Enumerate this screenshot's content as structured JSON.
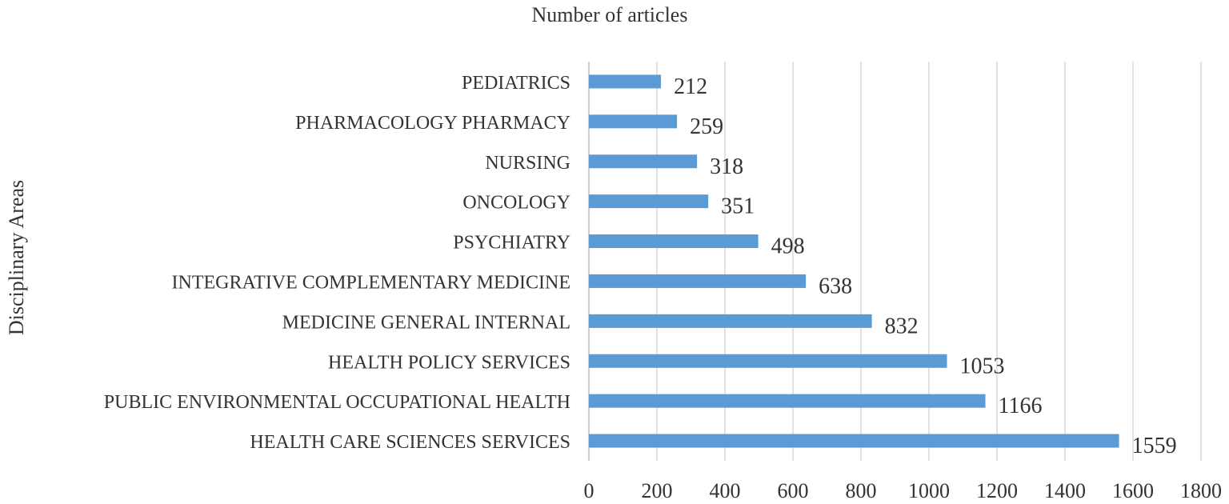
{
  "chart_data": {
    "type": "bar",
    "orientation": "horizontal",
    "title": "Number of articles",
    "xlabel": "",
    "ylabel": "Disciplinary Areas",
    "xlim": [
      0,
      1800
    ],
    "xticks": [
      0,
      200,
      400,
      600,
      800,
      1000,
      1200,
      1400,
      1600,
      1800
    ],
    "grid": "vertical",
    "bar_color": "#5b9bd5",
    "categories": [
      "PEDIATRICS",
      "PHARMACOLOGY PHARMACY",
      "NURSING",
      "ONCOLOGY",
      "PSYCHIATRY",
      "INTEGRATIVE COMPLEMENTARY MEDICINE",
      "MEDICINE GENERAL INTERNAL",
      "HEALTH POLICY SERVICES",
      "PUBLIC ENVIRONMENTAL OCCUPATIONAL HEALTH",
      "HEALTH CARE SCIENCES SERVICES"
    ],
    "values": [
      212,
      259,
      318,
      351,
      498,
      638,
      832,
      1053,
      1166,
      1559
    ]
  }
}
